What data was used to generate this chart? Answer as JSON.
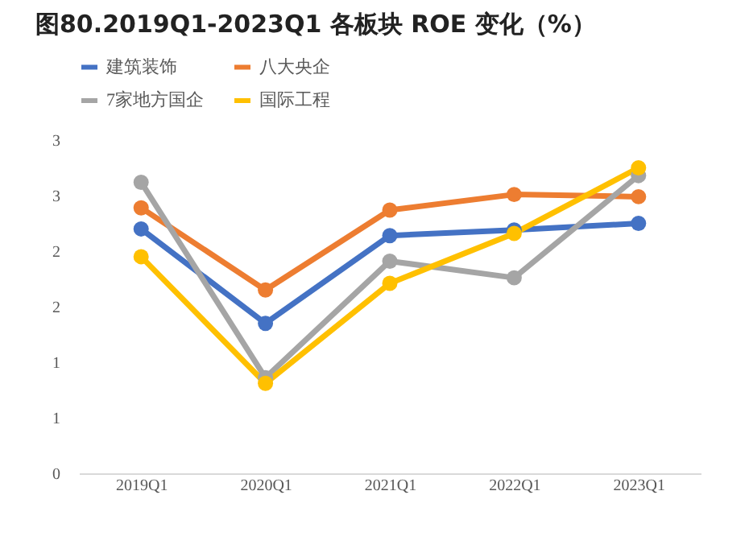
{
  "chart_data": {
    "type": "line",
    "title": "图80.2019Q1-2023Q1 各板块 ROE 变化（%）",
    "categories": [
      "2019Q1",
      "2020Q1",
      "2021Q1",
      "2022Q1",
      "2023Q1"
    ],
    "series": [
      {
        "name": "建筑装饰",
        "color": "#4472c4",
        "values": [
          2.2,
          1.35,
          2.14,
          2.19,
          2.25
        ]
      },
      {
        "name": "八大央企",
        "color": "#ed7d31",
        "values": [
          2.39,
          1.65,
          2.37,
          2.51,
          2.49
        ]
      },
      {
        "name": "7家地方国企",
        "color": "#a5a5a5",
        "values": [
          2.62,
          0.86,
          1.91,
          1.76,
          2.68
        ]
      },
      {
        "name": "国际工程",
        "color": "#ffc000",
        "values": [
          1.95,
          0.81,
          1.71,
          2.16,
          2.75
        ]
      }
    ],
    "ylim": [
      0,
      3
    ],
    "yticks": [
      {
        "value": 0,
        "label": "0"
      },
      {
        "value": 0.5,
        "label": "1"
      },
      {
        "value": 1,
        "label": "1"
      },
      {
        "value": 1.5,
        "label": "2"
      },
      {
        "value": 2,
        "label": "2"
      },
      {
        "value": 2.5,
        "label": "3"
      },
      {
        "value": 3,
        "label": "3"
      }
    ],
    "grid": false,
    "legend": "top",
    "marker": "circle",
    "line_style": "solid"
  }
}
